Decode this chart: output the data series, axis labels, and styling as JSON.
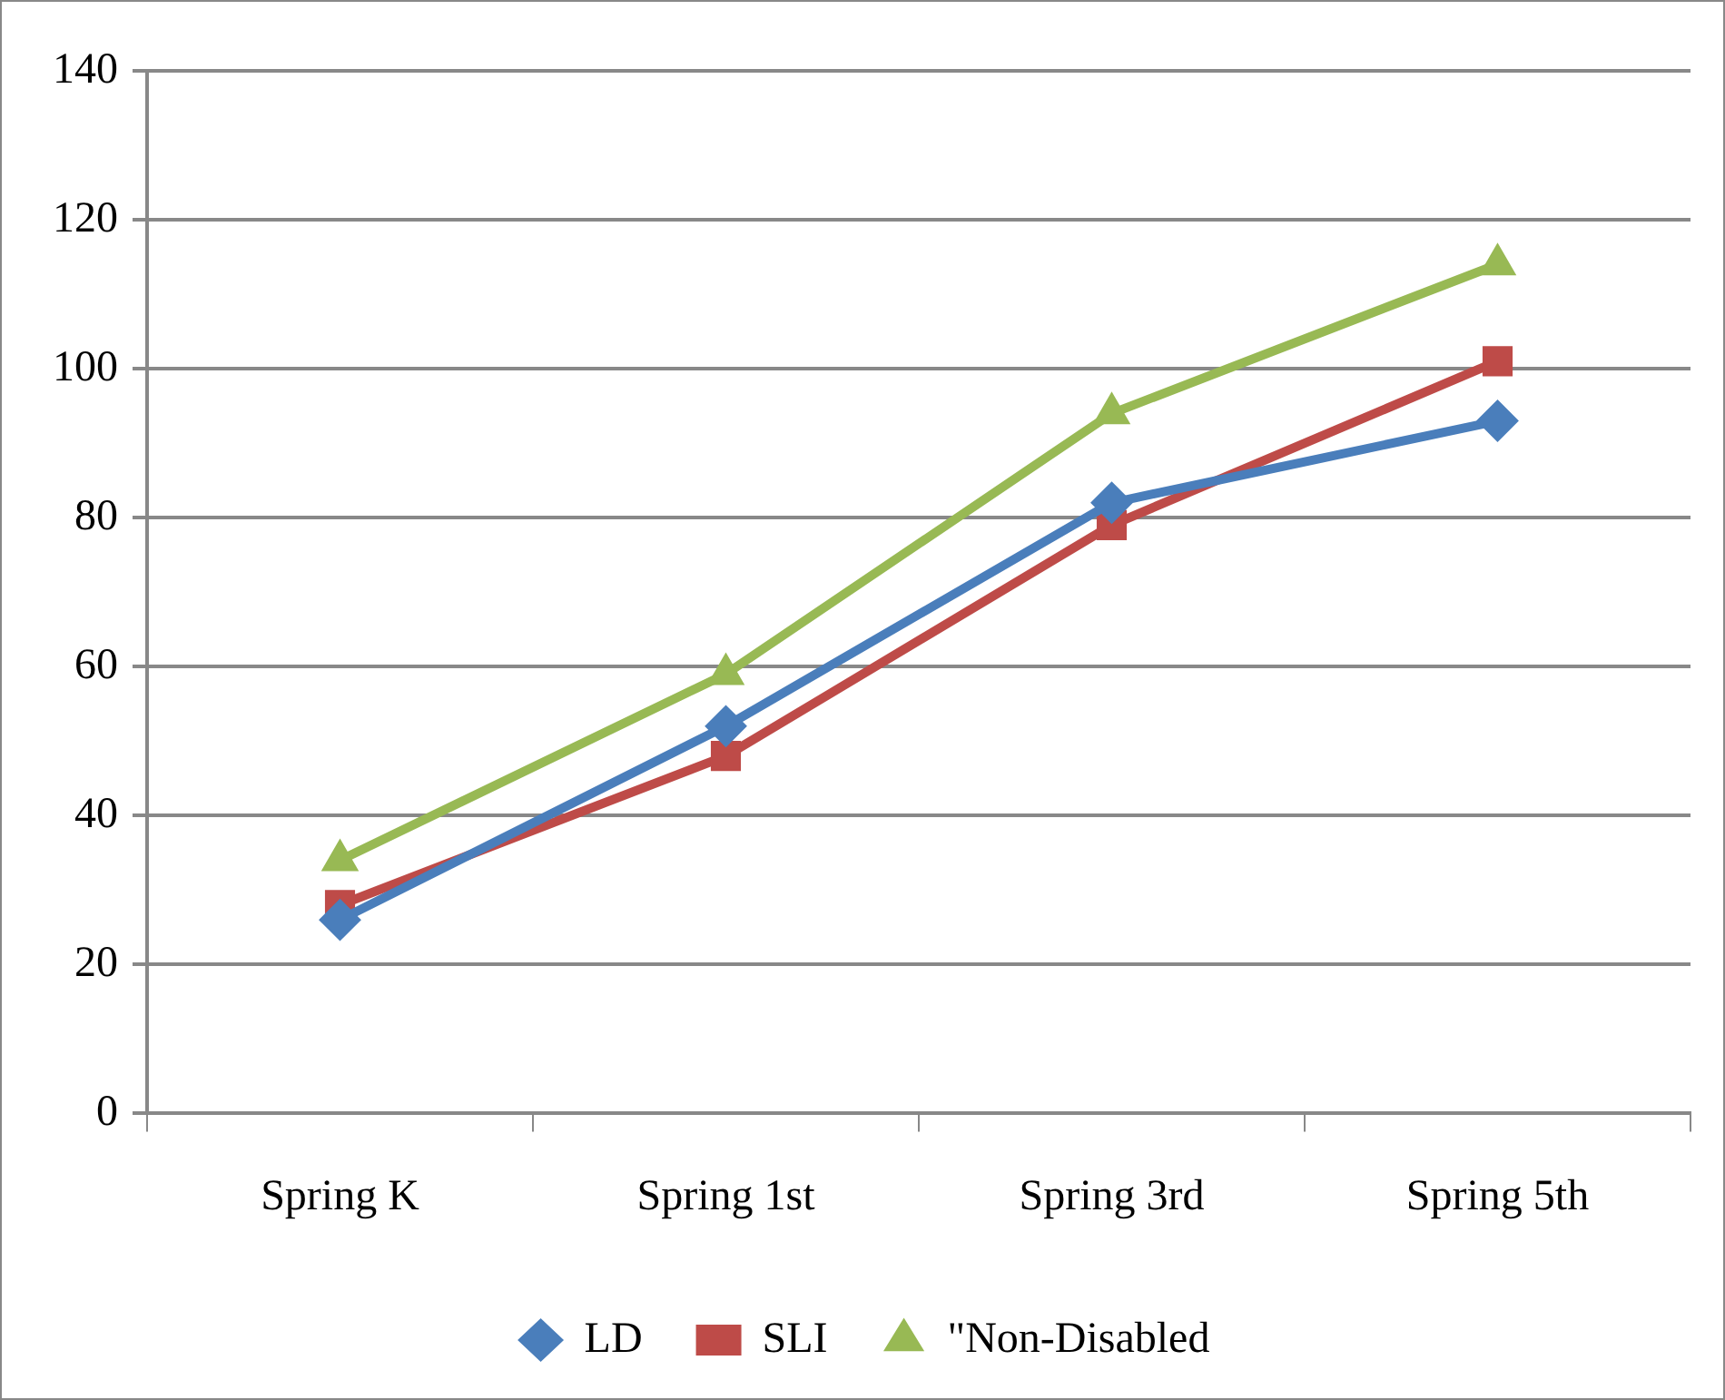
{
  "chart_data": {
    "type": "line",
    "categories": [
      "Spring K",
      "Spring 1st",
      "Spring 3rd",
      "Spring 5th"
    ],
    "series": [
      {
        "name": "LD",
        "color": "#4a7ebb",
        "values": [
          26,
          52,
          82,
          93
        ],
        "marker": "diamond"
      },
      {
        "name": "SLI",
        "color": "#be4b48",
        "values": [
          28,
          48,
          79,
          101
        ],
        "marker": "square"
      },
      {
        "name": "\"Non-Disabled",
        "color": "#98b954",
        "values": [
          34,
          59,
          94,
          114
        ],
        "marker": "triangle"
      }
    ],
    "ylim": [
      0,
      140
    ],
    "yticks": [
      0,
      20,
      40,
      60,
      80,
      100,
      120,
      140
    ],
    "grid": "y",
    "legend": "bottom",
    "line_style": "solid"
  }
}
